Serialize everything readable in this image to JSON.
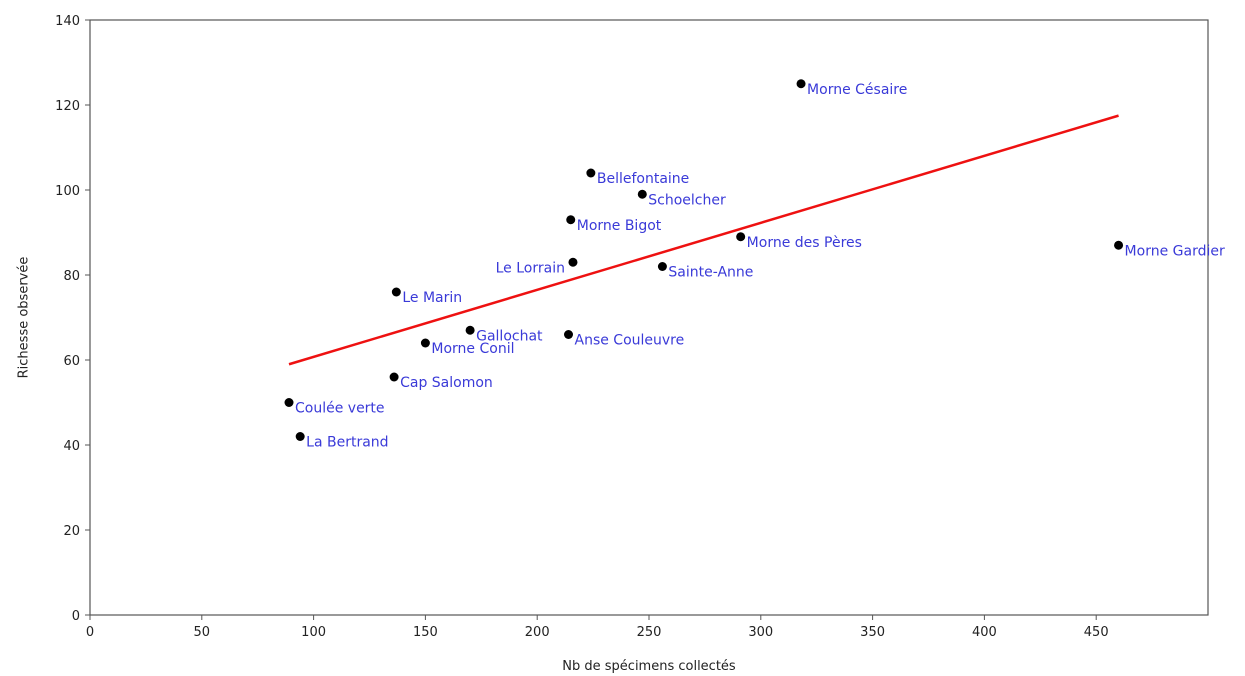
{
  "colors": {
    "point": "#000000",
    "label": "#3a3ad8",
    "trendline": "#ee1111",
    "axis": "#555555"
  },
  "chart_data": {
    "type": "scatter",
    "title": "",
    "xlabel": "Nb de spécimens collectés",
    "ylabel": "Richesse observée",
    "xlim": [
      0,
      500
    ],
    "ylim": [
      0,
      140
    ],
    "xticks": [
      0,
      50,
      100,
      150,
      200,
      250,
      300,
      350,
      400,
      450
    ],
    "yticks": [
      0,
      20,
      40,
      60,
      80,
      100,
      120,
      140
    ],
    "grid": false,
    "legend": "none",
    "points": [
      {
        "label": "Morne Césaire",
        "x": 318,
        "y": 125,
        "label_side": "right"
      },
      {
        "label": "Bellefontaine",
        "x": 224,
        "y": 104,
        "label_side": "right"
      },
      {
        "label": "Schoelcher",
        "x": 247,
        "y": 99,
        "label_side": "right"
      },
      {
        "label": "Morne Bigot",
        "x": 215,
        "y": 93,
        "label_side": "right"
      },
      {
        "label": "Morne des Pères",
        "x": 291,
        "y": 89,
        "label_side": "right"
      },
      {
        "label": "Morne Gardier",
        "x": 460,
        "y": 87,
        "label_side": "right"
      },
      {
        "label": "Le Lorrain",
        "x": 216,
        "y": 83,
        "label_side": "left"
      },
      {
        "label": "Sainte-Anne",
        "x": 256,
        "y": 82,
        "label_side": "right"
      },
      {
        "label": "Le Marin",
        "x": 137,
        "y": 76,
        "label_side": "right"
      },
      {
        "label": "Gallochat",
        "x": 170,
        "y": 67,
        "label_side": "right"
      },
      {
        "label": "Anse Couleuvre",
        "x": 214,
        "y": 66,
        "label_side": "right"
      },
      {
        "label": "Morne Conil",
        "x": 150,
        "y": 64,
        "label_side": "right"
      },
      {
        "label": "Cap Salomon",
        "x": 136,
        "y": 56,
        "label_side": "right"
      },
      {
        "label": "Coulée verte",
        "x": 89,
        "y": 50,
        "label_side": "right"
      },
      {
        "label": "La Bertrand",
        "x": 94,
        "y": 42,
        "label_side": "right"
      }
    ],
    "trendline": {
      "x": [
        89,
        460
      ],
      "y": [
        59,
        117.5
      ]
    }
  }
}
